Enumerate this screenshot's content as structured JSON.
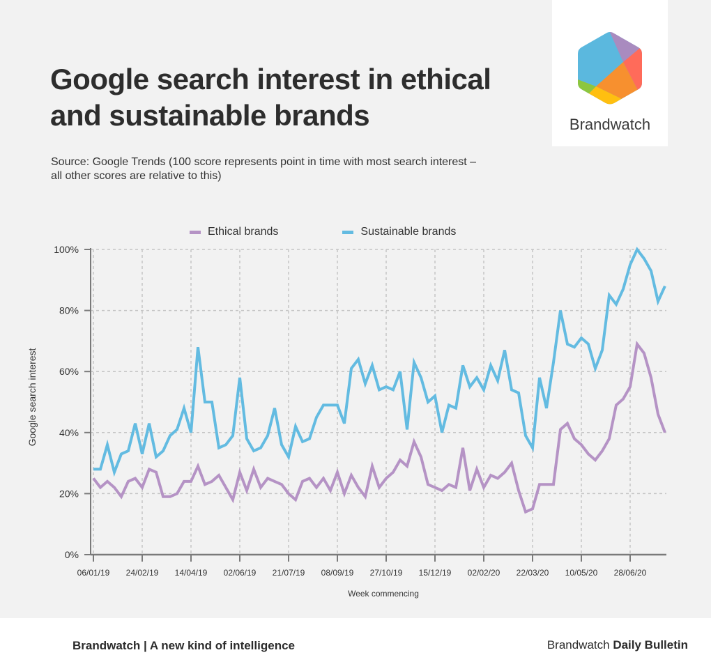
{
  "header": {
    "title": "Google search interest in ethical and sustainable brands",
    "subtitle": "Source: Google Trends (100 score represents point in time with most search interest – all other scores are relative to this)"
  },
  "logo": {
    "wordmark": "Brandwatch",
    "colors": {
      "blue": "#5bb8de",
      "purple": "#a98bbf",
      "red": "#ff6b5a",
      "orange": "#f7902f",
      "yellow": "#ffbf10",
      "green": "#8dc63f"
    }
  },
  "footer": {
    "left": "Brandwatch | A new kind of intelligence",
    "right_regular": "Brandwatch ",
    "right_bold": "Daily Bulletin"
  },
  "chart_data": {
    "type": "line",
    "title": "Google search interest in ethical and sustainable brands",
    "xlabel": "Week commencing",
    "ylabel": "Google search interest",
    "ylim": [
      0,
      100
    ],
    "yticks": [
      "0%",
      "20%",
      "40%",
      "60%",
      "80%",
      "100%"
    ],
    "ytick_values": [
      0,
      20,
      40,
      60,
      80,
      100
    ],
    "xtick_labels": [
      "06/01/19",
      "24/02/19",
      "14/04/19",
      "02/06/19",
      "21/07/19",
      "08/09/19",
      "27/10/19",
      "15/12/19",
      "02/02/20",
      "22/03/20",
      "10/05/20",
      "28/06/20"
    ],
    "xtick_interval_weeks": 7,
    "x_unit": "week index (weekly from 06/01/19)",
    "grid": true,
    "legend_position": "top-center",
    "series": [
      {
        "name": "Ethical brands",
        "color": "#b593c5",
        "values": [
          25,
          22,
          24,
          22,
          19,
          24,
          25,
          22,
          28,
          27,
          19,
          19,
          20,
          24,
          24,
          29,
          23,
          24,
          26,
          22,
          18,
          27,
          21,
          28,
          22,
          25,
          24,
          23,
          20,
          18,
          24,
          25,
          22,
          25,
          21,
          27,
          20,
          26,
          22,
          19,
          29,
          22,
          25,
          27,
          31,
          29,
          37,
          32,
          23,
          22,
          21,
          23,
          22,
          35,
          21,
          28,
          22,
          26,
          25,
          27,
          30,
          21,
          14,
          15,
          23,
          23,
          23,
          41,
          43,
          38,
          36,
          33,
          31,
          34,
          38,
          49,
          51,
          55,
          69,
          66,
          58,
          46,
          40
        ]
      },
      {
        "name": "Sustainable brands",
        "color": "#63bbe1",
        "values": [
          28,
          28,
          36,
          27,
          33,
          34,
          43,
          33,
          43,
          32,
          34,
          39,
          41,
          48,
          40,
          68,
          50,
          50,
          35,
          36,
          39,
          58,
          38,
          34,
          35,
          39,
          48,
          36,
          32,
          42,
          37,
          38,
          45,
          49,
          49,
          49,
          43,
          61,
          64,
          56,
          62,
          54,
          55,
          54,
          60,
          41,
          63,
          58,
          50,
          52,
          40,
          49,
          48,
          62,
          55,
          58,
          54,
          62,
          57,
          67,
          54,
          53,
          39,
          35,
          58,
          48,
          63,
          80,
          69,
          68,
          71,
          69,
          61,
          67,
          85,
          82,
          87,
          95,
          100,
          97,
          93,
          83,
          88
        ]
      }
    ]
  }
}
